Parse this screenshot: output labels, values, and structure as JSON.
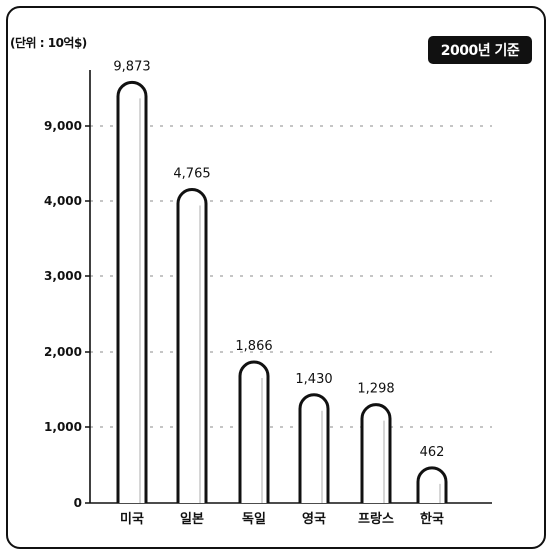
{
  "chart_data": {
    "type": "bar",
    "unit_label": "(단위 : 10억$)",
    "badge": "2000년 기준",
    "categories": [
      "미국",
      "일본",
      "독일",
      "영국",
      "프랑스",
      "한국"
    ],
    "values": [
      9873,
      4765,
      1866,
      1430,
      1298,
      462
    ],
    "value_labels": [
      "9,873",
      "4,765",
      "1,866",
      "1,430",
      "1,298",
      "462"
    ],
    "yticks": [
      {
        "value": 0,
        "label": "0"
      },
      {
        "value": 1000,
        "label": "1,000"
      },
      {
        "value": 2000,
        "label": "2,000"
      },
      {
        "value": 3000,
        "label": "3,000"
      },
      {
        "value": 4000,
        "label": "4,000"
      },
      {
        "value": 9000,
        "label": "9,000"
      }
    ],
    "axis_break": "between 4,000 and 9,000",
    "grid": true,
    "bar_color": "#ffffff",
    "outline_color": "#111111"
  }
}
